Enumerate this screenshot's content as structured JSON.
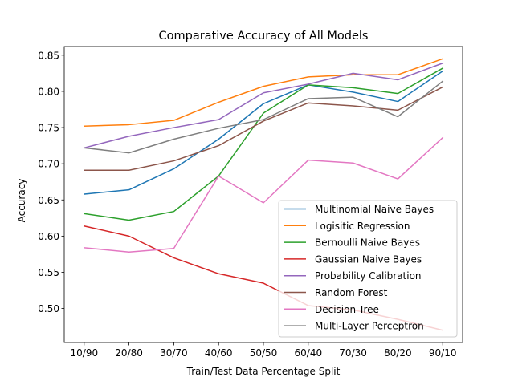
{
  "chart_data": {
    "type": "line",
    "title": "Comparative Accuracy of All Models",
    "xlabel": "Train/Test Data Percentage Split",
    "ylabel": "Accuracy",
    "categories": [
      "10/90",
      "20/80",
      "30/70",
      "40/60",
      "50/50",
      "60/40",
      "70/30",
      "80/20",
      "90/10"
    ],
    "ylim": [
      0.453,
      0.862
    ],
    "yticks": [
      0.5,
      0.55,
      0.6,
      0.65,
      0.7,
      0.75,
      0.8,
      0.85
    ],
    "ytick_labels": [
      "0.50",
      "0.55",
      "0.60",
      "0.65",
      "0.70",
      "0.75",
      "0.80",
      "0.85"
    ],
    "grid": false,
    "legend_position": "lower-right",
    "series": [
      {
        "name": "Multinomial Naive Bayes",
        "color": "#1f77b4",
        "values": [
          0.658,
          0.664,
          0.693,
          0.734,
          0.783,
          0.809,
          0.799,
          0.786,
          0.828
        ]
      },
      {
        "name": "Logisitic Regression",
        "color": "#ff7f0e",
        "values": [
          0.752,
          0.754,
          0.76,
          0.785,
          0.807,
          0.82,
          0.823,
          0.823,
          0.845
        ]
      },
      {
        "name": "Bernoulli Naive Bayes",
        "color": "#2ca02c",
        "values": [
          0.631,
          0.622,
          0.634,
          0.683,
          0.77,
          0.809,
          0.805,
          0.797,
          0.832
        ]
      },
      {
        "name": "Gaussian Naive Bayes",
        "color": "#d62728",
        "values": [
          0.614,
          0.6,
          0.57,
          0.548,
          0.535,
          0.504,
          0.498,
          0.485,
          0.47
        ]
      },
      {
        "name": "Probability Calibration",
        "color": "#9467bd",
        "values": [
          0.722,
          0.738,
          0.75,
          0.761,
          0.798,
          0.81,
          0.825,
          0.816,
          0.839
        ]
      },
      {
        "name": "Random Forest",
        "color": "#8c564b",
        "values": [
          0.691,
          0.691,
          0.704,
          0.725,
          0.759,
          0.784,
          0.78,
          0.774,
          0.806
        ]
      },
      {
        "name": "Decision Tree",
        "color": "#e377c2",
        "values": [
          0.584,
          0.578,
          0.583,
          0.683,
          0.646,
          0.705,
          0.701,
          0.679,
          0.736
        ]
      },
      {
        "name": "Multi-Layer Perceptron",
        "color": "#7f7f7f",
        "values": [
          0.722,
          0.715,
          0.734,
          0.749,
          0.761,
          0.79,
          0.792,
          0.765,
          0.814
        ]
      }
    ]
  }
}
